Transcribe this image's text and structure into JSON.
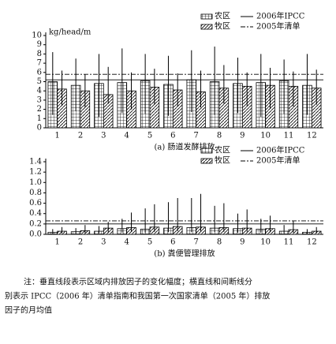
{
  "chart_data": [
    {
      "type": "bar",
      "y_label": "kg/head/m",
      "caption": "(a) 肠道发酵排放",
      "categories": [
        "1",
        "2",
        "3",
        "4",
        "5",
        "6",
        "7",
        "8",
        "9",
        "10",
        "11",
        "12"
      ],
      "series": [
        {
          "name": "农区",
          "color": "#000000",
          "pattern": "grid",
          "values": [
            5.0,
            4.6,
            4.8,
            4.9,
            5.1,
            4.7,
            5.2,
            5.0,
            4.8,
            4.9,
            5.1,
            4.6
          ],
          "low": [
            1.4,
            1.8,
            1.2,
            1.6,
            1.5,
            1.3,
            1.7,
            1.4,
            1.6,
            1.2,
            1.5,
            1.4
          ],
          "high": [
            8.2,
            7.5,
            8.0,
            8.6,
            8.0,
            7.8,
            8.4,
            8.8,
            7.6,
            8.0,
            7.4,
            8.0
          ]
        },
        {
          "name": "牧区",
          "color": "#000000",
          "pattern": "diagonal",
          "values": [
            4.2,
            4.0,
            3.6,
            4.0,
            4.4,
            4.1,
            3.9,
            4.3,
            4.5,
            4.6,
            4.5,
            4.3
          ],
          "low": [
            2.4,
            2.2,
            2.6,
            2.0,
            2.5,
            2.3,
            2.2,
            2.6,
            2.4,
            2.1,
            2.3,
            2.5
          ],
          "high": [
            6.2,
            5.8,
            6.6,
            6.0,
            6.4,
            5.9,
            6.2,
            6.8,
            6.0,
            6.5,
            6.1,
            6.3
          ]
        }
      ],
      "reference_lines": [
        {
          "name": "2006年IPCC",
          "value": 5.2,
          "style": "solid"
        },
        {
          "name": "2005年清单",
          "value": 5.8,
          "style": "dashdot"
        }
      ],
      "ylim": [
        0,
        10
      ],
      "yticks": [
        0,
        1,
        2,
        3,
        4,
        5,
        6,
        7,
        8,
        9,
        10
      ]
    },
    {
      "type": "bar",
      "caption": "(b) 粪便管理排放",
      "categories": [
        "1",
        "2",
        "3",
        "4",
        "5",
        "6",
        "7",
        "8",
        "9",
        "10",
        "11",
        "12"
      ],
      "series": [
        {
          "name": "农区",
          "color": "#000000",
          "pattern": "grid",
          "values": [
            0.04,
            0.05,
            0.06,
            0.11,
            0.1,
            0.12,
            0.13,
            0.12,
            0.11,
            0.1,
            0.06,
            0.04
          ],
          "low": [
            0.01,
            0.01,
            0.02,
            0.03,
            0.03,
            0.04,
            0.04,
            0.04,
            0.03,
            0.03,
            0.02,
            0.01
          ],
          "high": [
            0.1,
            0.12,
            0.16,
            0.3,
            0.5,
            0.62,
            0.7,
            0.55,
            0.4,
            0.3,
            0.18,
            0.1
          ]
        },
        {
          "name": "牧区",
          "color": "#000000",
          "pattern": "diagonal",
          "values": [
            0.06,
            0.07,
            0.12,
            0.13,
            0.14,
            0.15,
            0.14,
            0.13,
            0.12,
            0.11,
            0.09,
            0.06
          ],
          "low": [
            0.02,
            0.02,
            0.04,
            0.05,
            0.05,
            0.06,
            0.06,
            0.05,
            0.05,
            0.04,
            0.03,
            0.02
          ],
          "high": [
            0.14,
            0.18,
            0.24,
            0.42,
            0.58,
            0.7,
            0.78,
            0.6,
            0.48,
            0.36,
            0.26,
            0.14
          ]
        }
      ],
      "reference_lines": [
        {
          "name": "2006年IPCC",
          "value": 0.2,
          "style": "solid"
        },
        {
          "name": "2005年清单",
          "value": 0.26,
          "style": "dashdot"
        }
      ],
      "ylim": [
        0,
        1.4
      ],
      "yticks": [
        {
          "value": 0,
          "label": "0.0"
        },
        0.2,
        0.4,
        0.6,
        0.8,
        {
          "value": 1,
          "label": "1.0"
        },
        1.2,
        1.4
      ]
    }
  ],
  "note": [
    "注：垂直线段表示区域内排放因子的变化幅度；横直线和间断线分",
    "别表示 IPCC（2006 年）清单指南和我国第一次国家清单（2005 年）排放",
    "因子的月均值"
  ]
}
